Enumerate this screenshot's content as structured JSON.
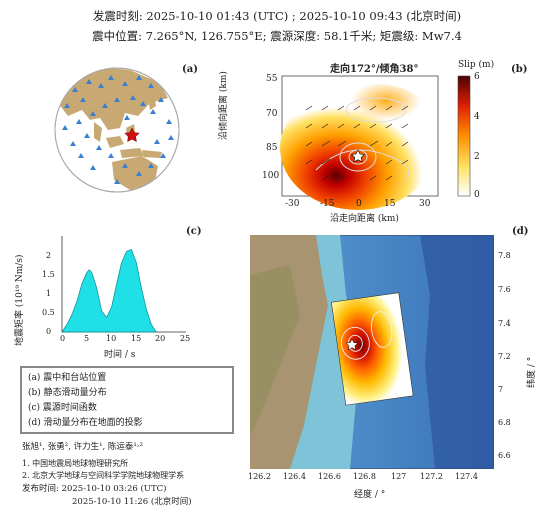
{
  "header": {
    "line1": "发震时刻: 2025-10-10 01:43 (UTC) ;  2025-10-10  09:43 (北京时间)",
    "line2": "震中位置: 7.265°N,  126.755°E;  震源深度: 58.1千米; 矩震级: Mw7.4"
  },
  "panels": {
    "a": {
      "letter": "(a)"
    },
    "b": {
      "letter": "(b)",
      "title": "走向172°/倾角38°",
      "colorbar_label": "Slip (m)",
      "colorbar_ticks": [
        "6",
        "4",
        "2",
        "0"
      ],
      "xlabel": "沿走向距离 (km)",
      "ylabel": "沿倾向距离 (km)",
      "xticks": [
        "-30",
        "-15",
        "0",
        "15",
        "30"
      ],
      "yticks": [
        "55",
        "70",
        "85",
        "100"
      ]
    },
    "c": {
      "letter": "(c)",
      "ylabel": "地震矩率 (10¹⁹ Nm/s)",
      "xlabel": "时间 / s",
      "xticks": [
        "0",
        "5",
        "10",
        "15",
        "20",
        "25"
      ],
      "yticks": [
        "0",
        "0.5",
        "1",
        "1.5",
        "2"
      ]
    },
    "d": {
      "letter": "(d)",
      "xlabel": "经度 / °",
      "ylabel": "纬度 / °",
      "xticks": [
        "126.2",
        "126.4",
        "126.6",
        "126.8",
        "127",
        "127.2",
        "127.4"
      ],
      "yticks": [
        "7.8",
        "7.6",
        "7.4",
        "7.2",
        "7",
        "6.8",
        "6.6"
      ]
    }
  },
  "legend": [
    "(a) 震中和台站位置",
    "(b) 静态滑动量分布",
    "(c) 震源时间函数",
    "(d) 滑动量分布在地面的投影"
  ],
  "credits": {
    "authors": "张旭¹, 张勇², 许力生¹, 陈运泰¹˒²",
    "affil1": "1. 中国地震局地球物理研究所",
    "affil2": "2. 北京大学地球与空间科学学院地球物理学系",
    "release1": "发布时间: 2025-10-10  03:26 (UTC)",
    "release2": "2025-10-10  11:26 (北京时间)"
  },
  "chart_data": [
    {
      "type": "area",
      "panel": "c",
      "x": [
        0,
        1,
        2,
        3,
        4,
        5,
        5.5,
        6,
        7,
        8,
        9,
        10,
        11,
        12,
        13,
        14,
        15,
        16,
        17,
        18,
        19
      ],
      "values": [
        0,
        0.2,
        0.45,
        0.8,
        1.25,
        1.55,
        1.62,
        1.55,
        1.15,
        0.55,
        0.38,
        0.65,
        1.25,
        1.8,
        2.1,
        2.15,
        1.8,
        1.15,
        0.6,
        0.2,
        0
      ],
      "xlim": [
        0,
        25
      ],
      "ylim": [
        0,
        2.5
      ],
      "color": "#1fe0e6"
    }
  ],
  "colors": {
    "land": "#c8a873",
    "ocean_globe": "#ffffff",
    "station": "#3a7fd0",
    "epicenter": "#d01010",
    "stf_fill": "#1fe0e6"
  }
}
